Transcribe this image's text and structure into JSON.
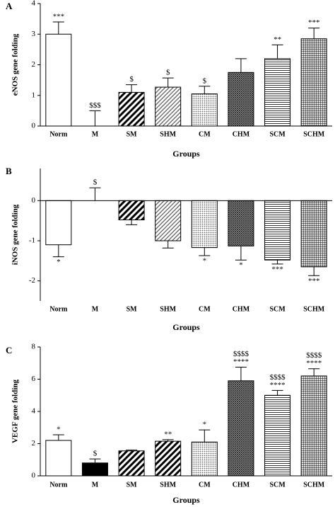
{
  "chart_data": [
    {
      "type": "bar",
      "panel": "A",
      "y_label": "eNOS gene folding",
      "x_label": "Groups",
      "categories": [
        "Norm",
        "M",
        "SM",
        "SHM",
        "CM",
        "CHM",
        "SCM",
        "SCHM"
      ],
      "values": [
        3.0,
        0,
        1.1,
        1.27,
        1.05,
        1.75,
        2.2,
        2.85
      ],
      "errors": [
        0.4,
        0.5,
        0.25,
        0.3,
        0.25,
        0.45,
        0.45,
        0.35
      ],
      "sig_labels": [
        [
          "***"
        ],
        [
          "$$$"
        ],
        [
          "$"
        ],
        [
          "$"
        ],
        [
          "$"
        ],
        [],
        [
          "**"
        ],
        [
          "***"
        ]
      ],
      "fills": [
        "white",
        "white",
        "diag-thick",
        "diag-thin",
        "dots",
        "cross",
        "hlines",
        "grid"
      ],
      "ylim": [
        0,
        4
      ],
      "yticks": [
        0,
        1,
        2,
        3,
        4
      ]
    },
    {
      "type": "bar",
      "panel": "B",
      "y_label": "iNOS gene folding",
      "x_label": "Groups",
      "categories": [
        "Norm",
        "M",
        "SM",
        "SHM",
        "CM",
        "CHM",
        "SCM",
        "SCHM"
      ],
      "values": [
        -1.1,
        0,
        -0.48,
        -1.0,
        -1.17,
        -1.13,
        -1.48,
        -1.65
      ],
      "errors": [
        0.3,
        0.32,
        0.12,
        0.18,
        0.2,
        0.35,
        0.1,
        0.22
      ],
      "sig_labels": [
        [
          "*"
        ],
        [
          "$"
        ],
        [],
        [],
        [
          "*"
        ],
        [
          "*"
        ],
        [
          "***"
        ],
        [
          "***"
        ]
      ],
      "fills": [
        "white",
        "white",
        "diag-thick",
        "diag-thin",
        "dots",
        "cross",
        "hlines",
        "grid"
      ],
      "ylim": [
        -2.5,
        0.8
      ],
      "yticks": [
        -2,
        -1,
        0
      ]
    },
    {
      "type": "bar",
      "panel": "C",
      "y_label": "VEGF gene folding",
      "x_label": "Groups",
      "categories": [
        "Norm",
        "M",
        "SM",
        "SHM",
        "CM",
        "CHM",
        "SCM",
        "SCHM"
      ],
      "values": [
        2.2,
        0.8,
        1.55,
        2.15,
        2.1,
        5.9,
        5.0,
        6.2
      ],
      "errors": [
        0.35,
        0.25,
        0.05,
        0.1,
        0.75,
        0.85,
        0.3,
        0.45
      ],
      "sig_labels": [
        [
          "*"
        ],
        [
          "$"
        ],
        [],
        [
          "**"
        ],
        [
          "*"
        ],
        [
          "$$$$",
          "****"
        ],
        [
          "$$$$",
          "****"
        ],
        [
          "$$$$",
          "****"
        ]
      ],
      "fills": [
        "white",
        "black",
        "diag-thick",
        "diag-thick",
        "dots",
        "cross",
        "hlines",
        "grid"
      ],
      "ylim": [
        0,
        8
      ],
      "yticks": [
        0,
        2,
        4,
        6,
        8
      ]
    }
  ]
}
